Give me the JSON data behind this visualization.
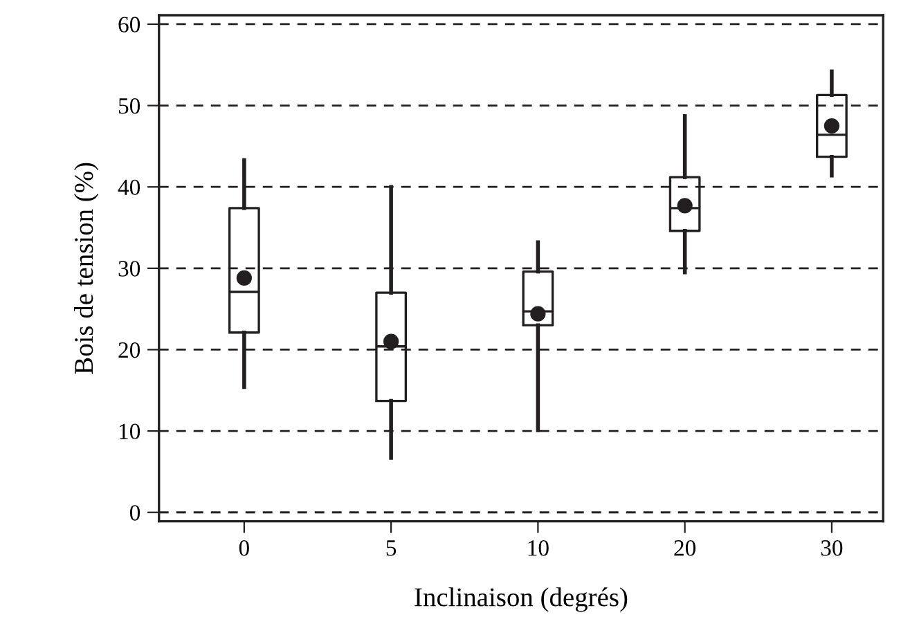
{
  "chart_data": {
    "type": "box",
    "xlabel": "Inclinaison (degrés)",
    "ylabel": "Bois de tension (%)",
    "categories": [
      "0",
      "5",
      "10",
      "20",
      "30"
    ],
    "boxes": [
      {
        "low": 15.4,
        "q1": 22.1,
        "median": 27.1,
        "q3": 37.4,
        "high": 43.3,
        "mean": 28.8
      },
      {
        "low": 6.7,
        "q1": 13.7,
        "median": 20.4,
        "q3": 27.0,
        "high": 40.0,
        "mean": 21.0
      },
      {
        "low": 10.1,
        "q1": 23.0,
        "median": 24.7,
        "q3": 29.6,
        "high": 33.2,
        "mean": 24.4
      },
      {
        "low": 29.5,
        "q1": 34.6,
        "median": 37.4,
        "q3": 41.2,
        "high": 48.7,
        "mean": 37.7
      },
      {
        "low": 41.4,
        "q1": 43.7,
        "median": 46.4,
        "q3": 51.3,
        "high": 54.2,
        "mean": 47.5
      }
    ],
    "color": "#231f20",
    "ylim": [
      -1.1,
      61.1
    ],
    "yticks": [
      0,
      10,
      20,
      30,
      40,
      50,
      60
    ],
    "grid": "y",
    "marker": "circle"
  }
}
